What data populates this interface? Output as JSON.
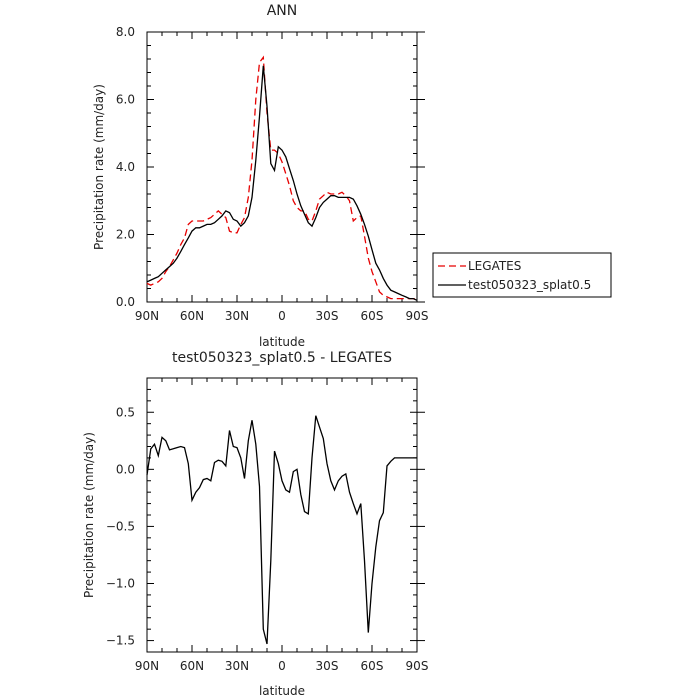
{
  "chart_data": [
    {
      "type": "line",
      "title": "ANN",
      "xlabel": "latitude",
      "ylabel": "Precipitation rate  (mm/day)",
      "x": [
        -90,
        -87.5,
        -85,
        -82.5,
        -80,
        -77.5,
        -75,
        -72.5,
        -70,
        -67.5,
        -65,
        -62.5,
        -60,
        -57.5,
        -55,
        -52.5,
        -50,
        -47.5,
        -45,
        -42.5,
        -40,
        -37.5,
        -35,
        -32.5,
        -30,
        -27.5,
        -25,
        -22.5,
        -20,
        -17.5,
        -15,
        -12.5,
        -10,
        -7.5,
        -5,
        -2.5,
        0,
        2.5,
        5,
        7.5,
        10,
        12.5,
        15,
        17.5,
        20,
        22.5,
        25,
        27.5,
        30,
        32.5,
        35,
        37.5,
        40,
        42.5,
        45,
        47.5,
        50,
        52.5,
        55,
        57.5,
        60,
        62.5,
        65,
        67.5,
        70,
        72.5,
        75,
        77.5,
        80,
        82.5,
        85,
        87.5,
        90
      ],
      "xlim": [
        -90,
        90
      ],
      "xticks": [
        -90,
        -60,
        -30,
        0,
        30,
        60,
        90
      ],
      "xtick_labels": [
        "90N",
        "60N",
        "30N",
        "0",
        "30S",
        "60S",
        "90S"
      ],
      "ylim": [
        0,
        8
      ],
      "yticks": [
        0,
        2,
        4,
        6,
        8
      ],
      "ytick_labels": [
        "0.0",
        "2.0",
        "4.0",
        "6.0",
        "8.0"
      ],
      "legend_position": "right",
      "series": [
        {
          "name": "LEGATES",
          "color": "#e60000",
          "dash": "dashed",
          "values": [
            0.55,
            0.5,
            0.55,
            0.6,
            0.7,
            0.9,
            1.05,
            1.25,
            1.45,
            1.7,
            1.9,
            2.3,
            2.4,
            2.4,
            2.4,
            2.4,
            2.45,
            2.5,
            2.6,
            2.7,
            2.6,
            2.5,
            2.1,
            2.05,
            2.05,
            2.3,
            2.5,
            3.1,
            4.2,
            6.0,
            7.1,
            7.25,
            5.6,
            4.5,
            4.5,
            4.4,
            4.15,
            3.8,
            3.45,
            3.0,
            2.8,
            2.7,
            2.7,
            2.45,
            2.4,
            2.7,
            3.05,
            3.15,
            3.25,
            3.2,
            3.2,
            3.2,
            3.25,
            3.15,
            3.0,
            2.4,
            2.5,
            2.55,
            1.95,
            1.3,
            0.9,
            0.6,
            0.3,
            0.2,
            0.15,
            0.1,
            0.1,
            0.1,
            0.1,
            0.1,
            0.1,
            0.1,
            0.1
          ]
        },
        {
          "name": "test050323_splat0.5",
          "color": "#000000",
          "dash": "solid",
          "values": [
            0.6,
            0.65,
            0.7,
            0.75,
            0.85,
            0.95,
            1.05,
            1.15,
            1.3,
            1.5,
            1.7,
            1.9,
            2.1,
            2.2,
            2.2,
            2.25,
            2.3,
            2.3,
            2.35,
            2.45,
            2.55,
            2.7,
            2.65,
            2.45,
            2.4,
            2.25,
            2.35,
            2.55,
            3.1,
            4.2,
            5.5,
            7.0,
            5.8,
            4.1,
            3.9,
            4.6,
            4.5,
            4.3,
            3.95,
            3.6,
            3.2,
            2.85,
            2.6,
            2.35,
            2.25,
            2.5,
            2.8,
            2.95,
            3.05,
            3.15,
            3.15,
            3.1,
            3.1,
            3.1,
            3.1,
            3.05,
            2.85,
            2.6,
            2.3,
            1.95,
            1.55,
            1.15,
            0.95,
            0.7,
            0.5,
            0.35,
            0.3,
            0.25,
            0.2,
            0.15,
            0.1,
            0.1,
            0.05
          ]
        }
      ]
    },
    {
      "type": "line",
      "title": "test050323_splat0.5 - LEGATES",
      "xlabel": "latitude",
      "ylabel": "Precipitation rate  (mm/day)",
      "x": [
        -90,
        -87.5,
        -85,
        -82.5,
        -80,
        -77.5,
        -75,
        -72.5,
        -70,
        -67.5,
        -65,
        -62.5,
        -60,
        -57.5,
        -55,
        -52.5,
        -50,
        -47.5,
        -45,
        -42.5,
        -40,
        -37.5,
        -35,
        -32.5,
        -30,
        -27.5,
        -25,
        -22.5,
        -20,
        -17.5,
        -15,
        -12.5,
        -10,
        -7.5,
        -5,
        -2.5,
        0,
        2.5,
        5,
        7.5,
        10,
        12.5,
        15,
        17.5,
        20,
        22.5,
        25,
        27.5,
        30,
        32.5,
        35,
        37.5,
        40,
        42.5,
        45,
        47.5,
        50,
        52.5,
        55,
        57.5,
        60,
        62.5,
        65,
        67.5,
        70,
        72.5,
        75,
        77.5,
        80,
        82.5,
        85,
        87.5,
        90
      ],
      "xlim": [
        -90,
        90
      ],
      "xticks": [
        -90,
        -60,
        -30,
        0,
        30,
        60,
        90
      ],
      "xtick_labels": [
        "90N",
        "60N",
        "30N",
        "0",
        "30S",
        "60S",
        "90S"
      ],
      "ylim": [
        -1.6,
        0.8
      ],
      "yticks": [
        -1.5,
        -1.0,
        -0.5,
        0.0,
        0.5
      ],
      "ytick_labels": [
        "−1.5",
        "−1.0",
        "−0.5",
        "0.0",
        "0.5"
      ],
      "series": [
        {
          "name": "",
          "color": "#000000",
          "dash": "solid",
          "values": [
            -0.05,
            0.18,
            0.22,
            0.12,
            0.28,
            0.25,
            0.17,
            0.18,
            0.19,
            0.2,
            0.19,
            0.05,
            -0.27,
            -0.2,
            -0.16,
            -0.09,
            -0.08,
            -0.1,
            0.06,
            0.08,
            0.07,
            0.03,
            0.34,
            0.2,
            0.19,
            0.1,
            -0.08,
            0.25,
            0.43,
            0.22,
            -0.15,
            -1.4,
            -1.53,
            -0.8,
            0.16,
            0.05,
            -0.1,
            -0.18,
            -0.2,
            -0.02,
            0.0,
            -0.22,
            -0.37,
            -0.39,
            0.1,
            0.47,
            0.37,
            0.27,
            0.05,
            -0.1,
            -0.18,
            -0.1,
            -0.06,
            -0.04,
            -0.2,
            -0.3,
            -0.39,
            -0.3,
            -0.8,
            -1.43,
            -1.0,
            -0.68,
            -0.45,
            -0.38,
            0.03,
            0.07,
            0.1,
            0.1,
            0.1,
            0.1,
            0.1,
            0.1,
            0.1
          ]
        }
      ]
    }
  ]
}
